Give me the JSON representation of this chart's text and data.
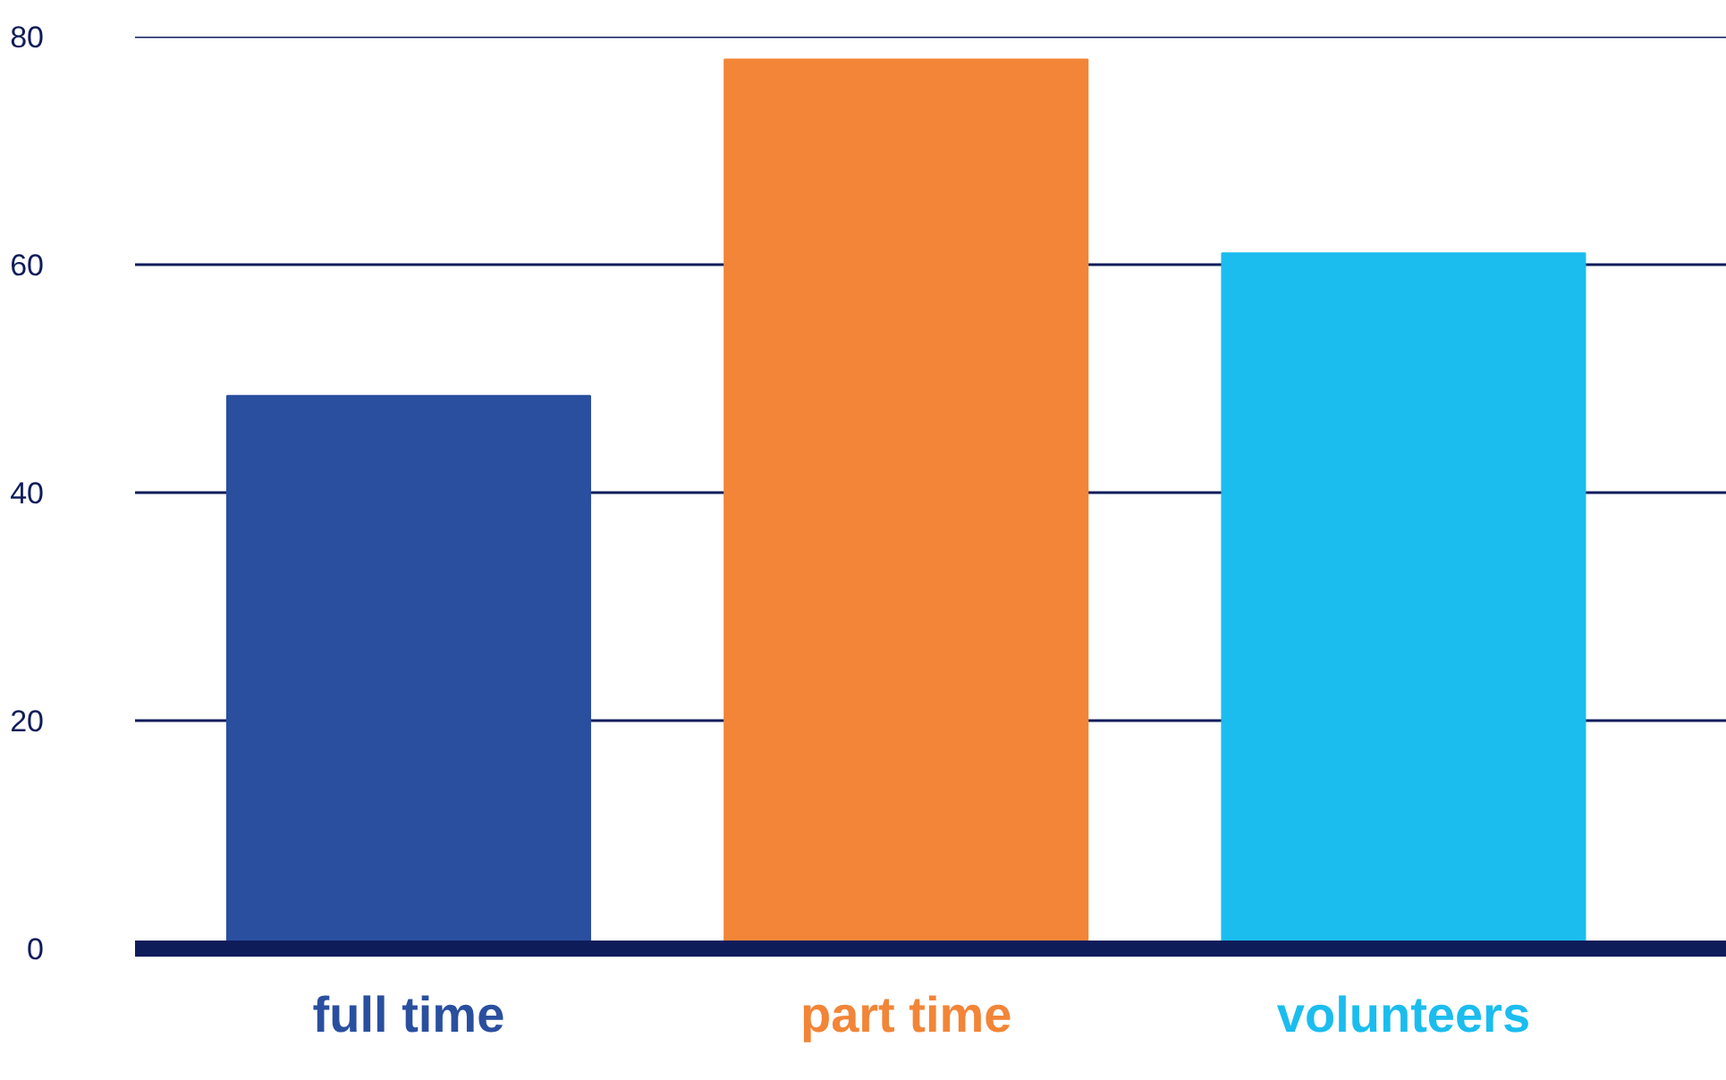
{
  "chart_data": {
    "type": "bar",
    "categories": [
      "full time",
      "part time",
      "volunteers"
    ],
    "values": [
      48.5,
      78,
      61
    ],
    "colors": [
      "#2a4f9f",
      "#f28537",
      "#1bbdee"
    ],
    "ylim": [
      0,
      80
    ],
    "yticks": [
      0,
      20,
      40,
      60,
      80
    ],
    "grid": "y"
  }
}
